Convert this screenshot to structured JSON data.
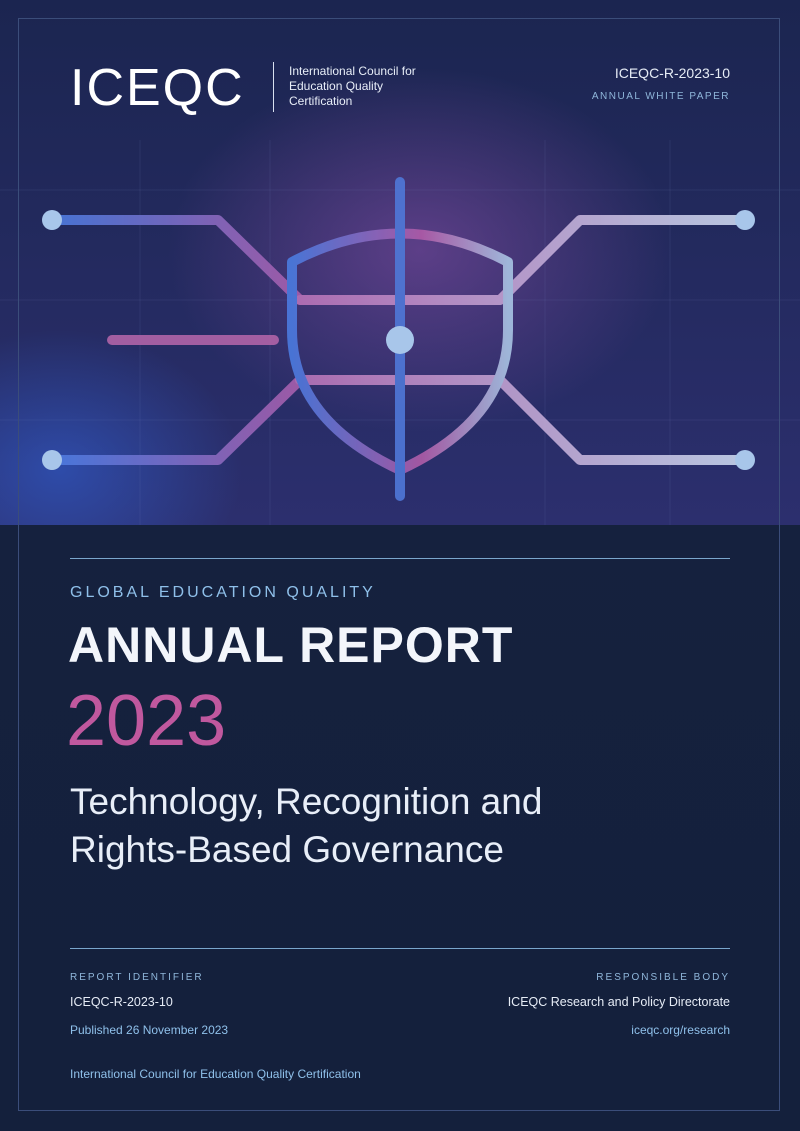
{
  "header": {
    "logo": "ICEQC",
    "organization": "International Council for Education Quality Certification",
    "document_id": "ICEQC-R-2023-10",
    "document_type": "ANNUAL WHITE PAPER"
  },
  "cover": {
    "kicker": "GLOBAL EDUCATION QUALITY",
    "title": "ANNUAL REPORT",
    "year": "2023",
    "subtitle": "Technology, Recognition and Rights-Based Governance"
  },
  "footer": {
    "left": {
      "label": "REPORT IDENTIFIER",
      "identifier": "ICEQC-R-2023-10",
      "published": "Published 26 November 2023"
    },
    "right": {
      "label": "RESPONSIBLE BODY",
      "body": "ICEQC Research and Policy Directorate",
      "website": "iceqc.org/research"
    },
    "publisher": "International Council for Education Quality Certification"
  }
}
